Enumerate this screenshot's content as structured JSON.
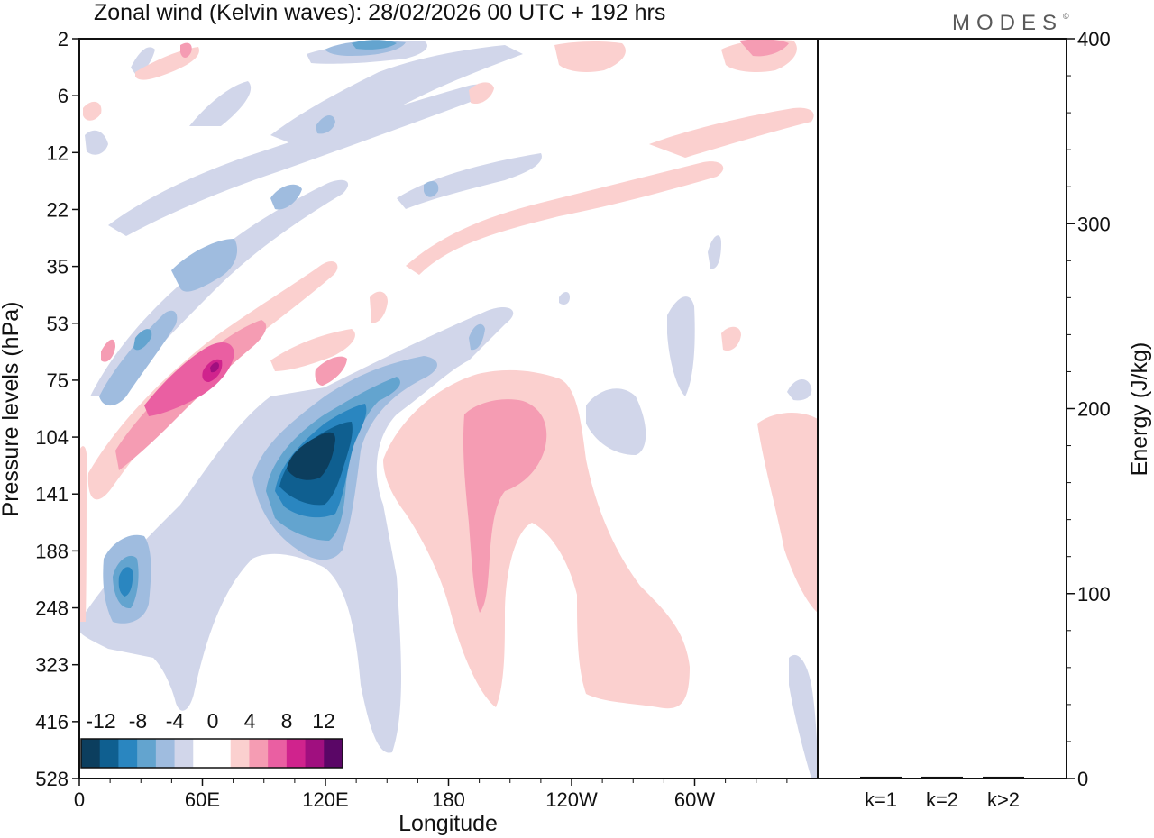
{
  "chart_data": {
    "type": "heatmap",
    "title": "Zonal wind (Kelvin waves):  28/02/2026  00 UTC  + 192 hrs",
    "brand": "MODES",
    "brand_mark": "©",
    "xlabel": "Longitude",
    "ylabel": "Pressure levels (hPa)",
    "y2label": "Energy (J/kg)",
    "x_ticks": [
      "0",
      "60E",
      "120E",
      "180",
      "120W",
      "60W"
    ],
    "x_range": [
      0,
      360
    ],
    "y_levels": [
      "2",
      "6",
      "12",
      "22",
      "35",
      "53",
      "75",
      "104",
      "141",
      "188",
      "248",
      "323",
      "416",
      "528"
    ],
    "y2_ticks": [
      "0",
      "100",
      "200",
      "300",
      "400"
    ],
    "y2_range": [
      0,
      400
    ],
    "energy_bars": {
      "categories": [
        "k=1",
        "k=2",
        "k>2"
      ],
      "values": [
        1,
        1,
        1
      ]
    },
    "colorbar": {
      "labels": [
        "-12",
        "-8",
        "-4",
        "0",
        "4",
        "8",
        "12"
      ],
      "colors": [
        "#0c3e5e",
        "#0f5f90",
        "#2a86c0",
        "#63a4cf",
        "#9fbcdf",
        "#d1d6ea",
        "#ffffff",
        "#ffffff",
        "#fbd0cf",
        "#f59cb3",
        "#ea5fa2",
        "#d0238d",
        "#a00f7f",
        "#5a0666"
      ]
    },
    "features": [
      {
        "name": "negative-core-120e",
        "sign": "neg",
        "lon": 110,
        "level": "130",
        "peak": -14
      },
      {
        "name": "positive-core-60e",
        "sign": "pos",
        "lon": 60,
        "level": "75",
        "peak": 10
      },
      {
        "name": "positive-region-180-150w",
        "sign": "pos",
        "lon": 195,
        "level": "150",
        "peak": 6
      },
      {
        "name": "negative-patch-25e",
        "sign": "neg",
        "lon": 22,
        "level": "230",
        "peak": -6
      },
      {
        "name": "negative-upper-130e",
        "sign": "neg",
        "lon": 135,
        "level": "2",
        "peak": -7
      }
    ]
  }
}
